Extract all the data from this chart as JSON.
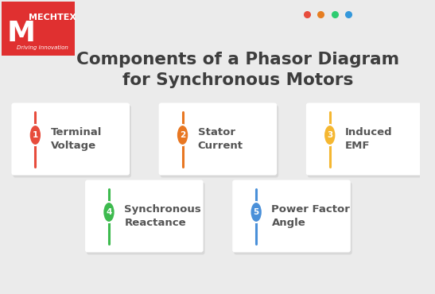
{
  "title_line1": "Components of a Phasor Diagram",
  "title_line2": "for Synchronous Motors",
  "bg_color": "#ebebeb",
  "title_color": "#3d3d3d",
  "dot_colors": [
    "#e74c3c",
    "#e67e22",
    "#2ecc71",
    "#3498db"
  ],
  "items": [
    {
      "number": "1",
      "label": "Terminal\nVoltage",
      "color": "#e74c3c",
      "col": 0,
      "row": 0
    },
    {
      "number": "2",
      "label": "Stator\nCurrent",
      "color": "#e87722",
      "col": 1,
      "row": 0
    },
    {
      "number": "3",
      "label": "Induced\nEMF",
      "color": "#f5b731",
      "col": 2,
      "row": 0
    },
    {
      "number": "4",
      "label": "Synchronous\nReactance",
      "color": "#3dba4e",
      "col": 0,
      "row": 1
    },
    {
      "number": "5",
      "label": "Power Factor\nAngle",
      "color": "#4a90d9",
      "col": 1,
      "row": 1
    }
  ],
  "card_color": "#ffffff",
  "card_shadow_color": "#d8d8d8",
  "label_color": "#555555"
}
